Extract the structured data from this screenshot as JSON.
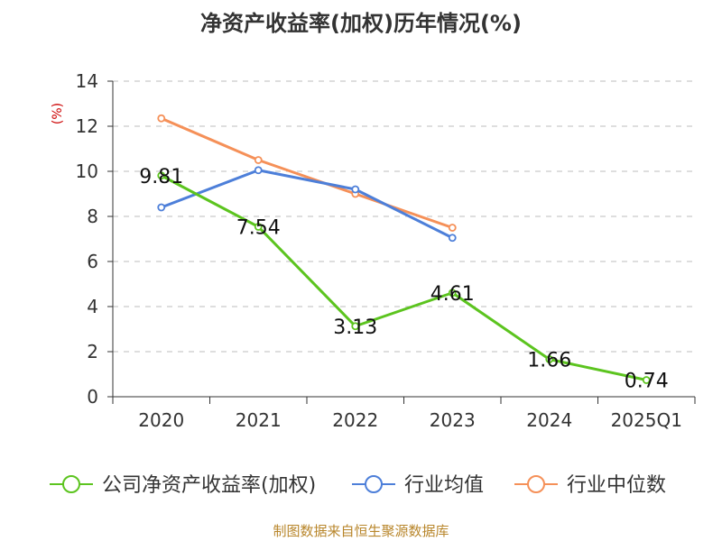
{
  "chart_data": {
    "type": "line",
    "title": "净资产收益率(加权)历年情况(%)",
    "ylabel": "(%)",
    "xlabel": "",
    "categories": [
      "2020",
      "2021",
      "2022",
      "2023",
      "2024",
      "2025Q1"
    ],
    "ylim": [
      0,
      14
    ],
    "yticks": [
      0,
      2,
      4,
      6,
      8,
      10,
      12,
      14
    ],
    "grid": "horizontal-dashed",
    "legend_position": "bottom",
    "series": [
      {
        "name": "公司净资产收益率(加权)",
        "color": "#5cc41f",
        "values": [
          9.81,
          7.54,
          3.13,
          4.61,
          1.66,
          0.74
        ],
        "labels": [
          "9.81",
          "7.54",
          "3.13",
          "4.61",
          "1.66",
          "0.74"
        ]
      },
      {
        "name": "行业均值",
        "color": "#4d7fd9",
        "values": [
          8.4,
          10.05,
          9.2,
          7.05,
          null,
          null
        ]
      },
      {
        "name": "行业中位数",
        "color": "#f59058",
        "values": [
          12.35,
          10.5,
          9.0,
          7.5,
          null,
          null
        ]
      }
    ]
  },
  "footer": {
    "source": "制图数据来自恒生聚源数据库"
  }
}
